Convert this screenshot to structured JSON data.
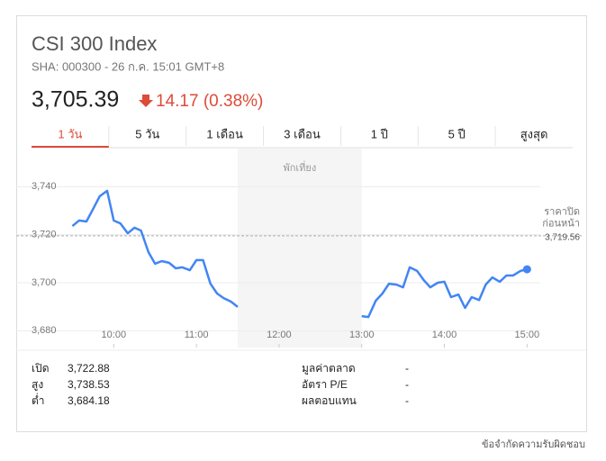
{
  "header": {
    "title": "CSI 300 Index",
    "subtitle": "SHA: 000300 - 26 ก.ค. 15:01 GMT+8",
    "price": "3,705.39",
    "change": "14.17 (0.38%)"
  },
  "tabs": [
    "1 วัน",
    "5 วัน",
    "1 เดือน",
    "3 เดือน",
    "1 ปี",
    "5 ปี",
    "สูงสุด"
  ],
  "chart_data": {
    "type": "line",
    "x": [
      9.5,
      9.58,
      9.67,
      9.75,
      9.83,
      9.92,
      10,
      10.08,
      10.17,
      10.25,
      10.33,
      10.42,
      10.5,
      10.58,
      10.67,
      10.75,
      10.83,
      10.92,
      11,
      11.08,
      11.17,
      11.25,
      11.33,
      11.42,
      11.5,
      12,
      13,
      13.08,
      13.17,
      13.25,
      13.33,
      13.42,
      13.5,
      13.58,
      13.67,
      13.75,
      13.83,
      13.92,
      14,
      14.08,
      14.17,
      14.25,
      14.33,
      14.42,
      14.5,
      14.58,
      14.67,
      14.75,
      14.83,
      14.92,
      15
    ],
    "series": [
      {
        "color": "#4285f4",
        "values": [
          3723.6,
          3725.9,
          3725.5,
          3730.7,
          3736.0,
          3738.3,
          3725.9,
          3724.7,
          3720.6,
          3722.9,
          3721.7,
          3712.7,
          3707.9,
          3709.0,
          3708.3,
          3706.0,
          3706.4,
          3705.2,
          3709.4,
          3709.4,
          3699.6,
          3695.5,
          3693.6,
          3692.1,
          3689.9,
          null,
          3686.1,
          3685.7,
          3692.5,
          3695.5,
          3699.6,
          3699.2,
          3698.1,
          3706.4,
          3704.9,
          3701.1,
          3698.1,
          3700.0,
          3700.4,
          3694.0,
          3695.1,
          3689.5,
          3694.0,
          3692.8,
          3699.2,
          3702.2,
          3700.4,
          3703.0,
          3703.0,
          3704.9,
          3705.6
        ]
      }
    ],
    "xlim": [
      8.82,
      15.16
    ],
    "ylim": [
      3673,
      3754
    ],
    "xticks": [
      {
        "value": 10,
        "label": "10:00"
      },
      {
        "value": 11,
        "label": "11:00"
      },
      {
        "value": 12,
        "label": "12:00"
      },
      {
        "value": 13,
        "label": "13:00"
      },
      {
        "value": 14,
        "label": "14:00"
      },
      {
        "value": 15,
        "label": "15:00"
      }
    ],
    "yticks": [
      {
        "value": 3680,
        "label": "3,680"
      },
      {
        "value": 3700,
        "label": "3,700"
      },
      {
        "value": 3720,
        "label": "3,720"
      },
      {
        "value": 3740,
        "label": "3,740"
      }
    ],
    "grid": true,
    "break": {
      "label": "พักเที่ยง",
      "start": 11.5,
      "end": 13
    },
    "previous_close": {
      "label": [
        "ราคาปิด",
        "ก่อนหน้า"
      ],
      "value": 3719.56,
      "value_label": "3,719.56"
    }
  },
  "stats": {
    "left": [
      {
        "label": "เปิด",
        "value": "3,722.88"
      },
      {
        "label": "สูง",
        "value": "3,738.53"
      },
      {
        "label": "ต่ำ",
        "value": "3,684.18"
      }
    ],
    "right": [
      {
        "label": "มูลค่าตลาด",
        "value": "-"
      },
      {
        "label": "อัตรา P/E",
        "value": "-"
      },
      {
        "label": "ผลตอบแทน",
        "value": "-"
      }
    ]
  },
  "footer": "ข้อจำกัดความรับผิดชอบ"
}
